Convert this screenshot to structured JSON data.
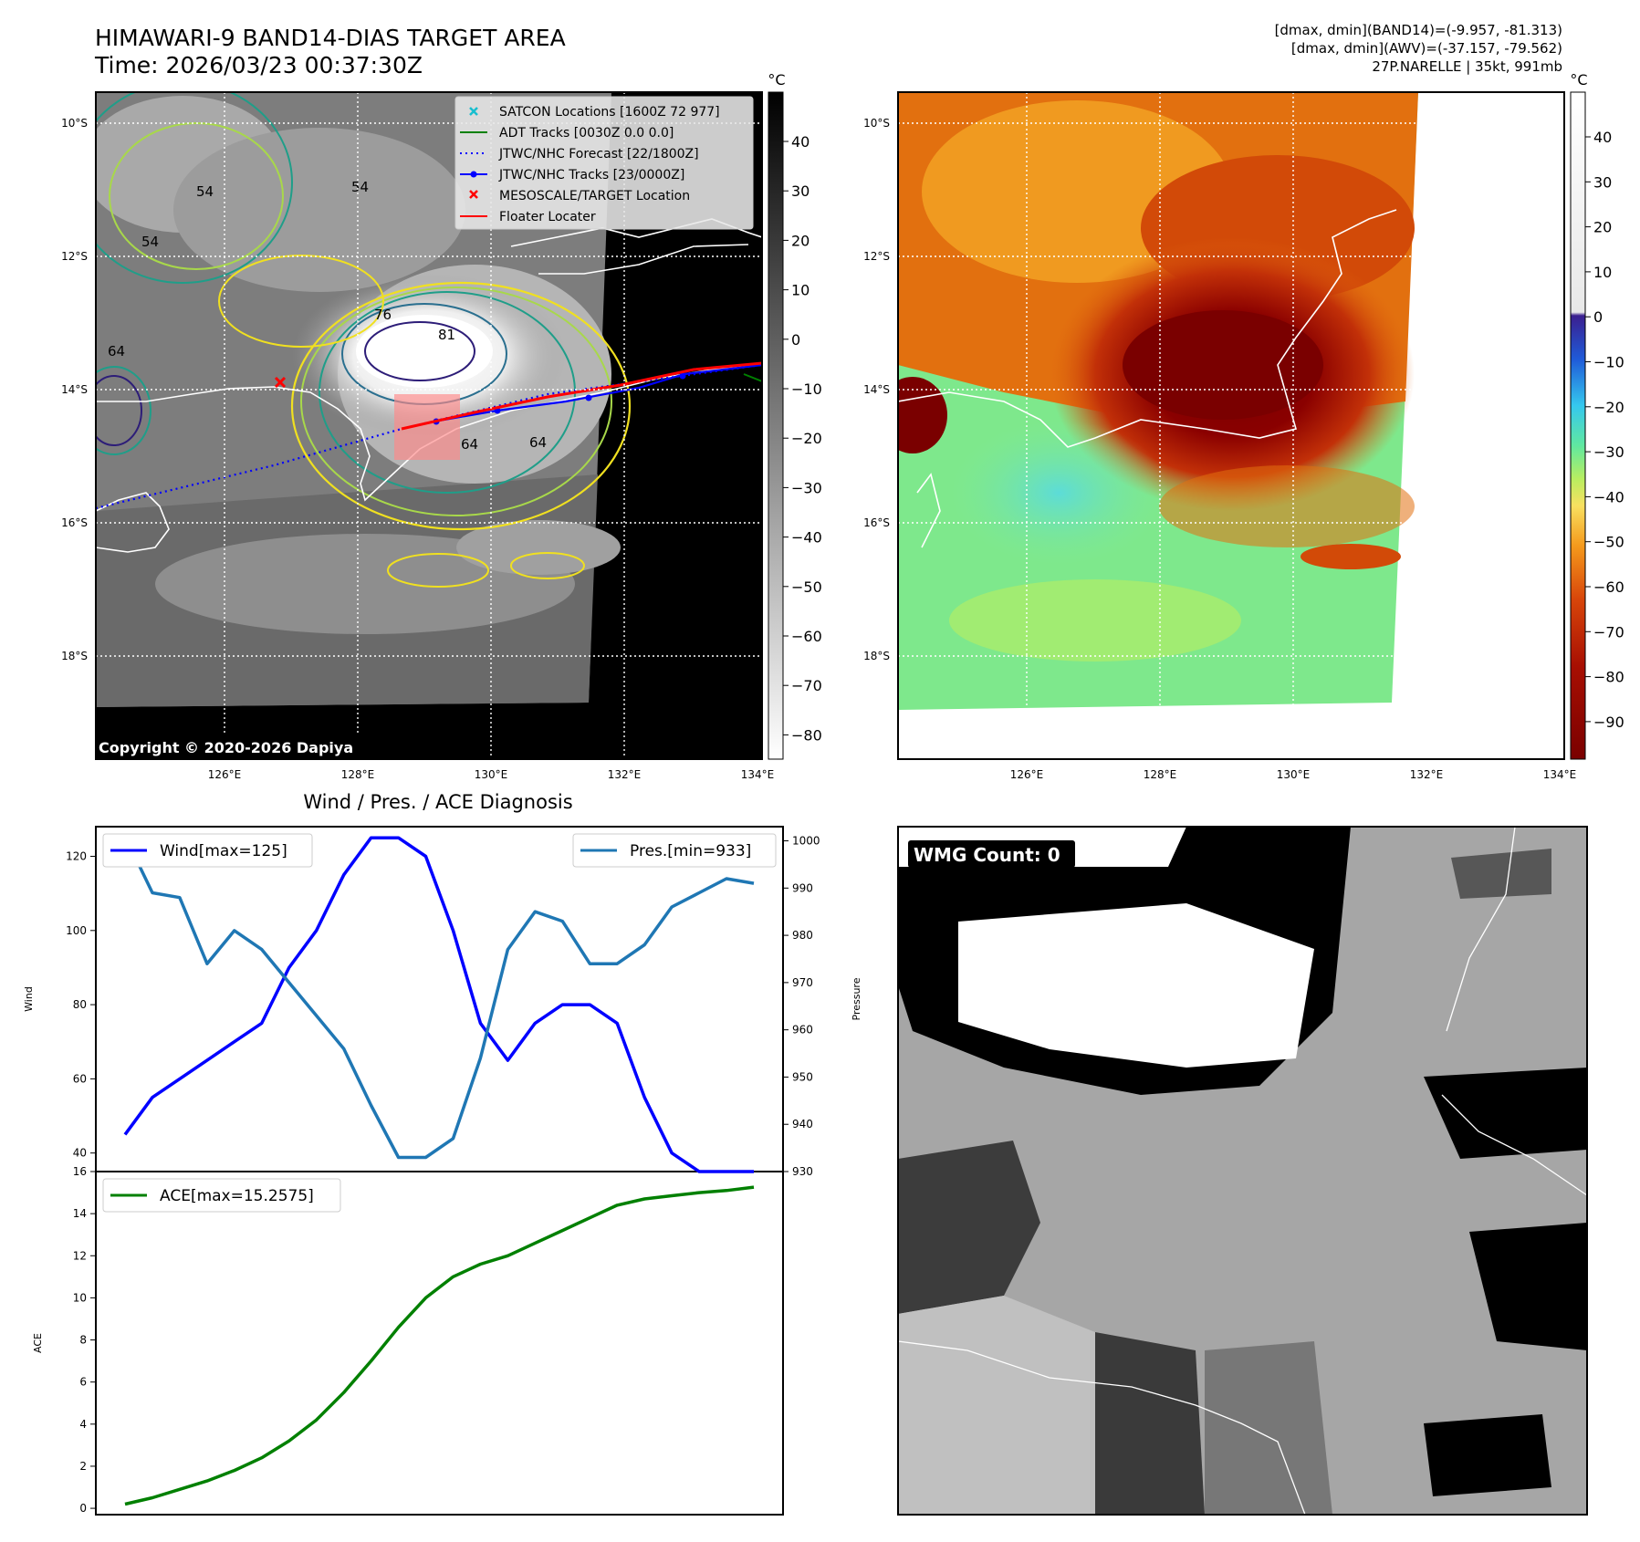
{
  "header": {
    "title_line1": "HIMAWARI-9 BAND14-DIAS TARGET AREA",
    "title_line2": "Time: 2026/03/23 00:37:30Z",
    "info_line1": "[dmax, dmin](BAND14)=(-9.957, -81.313)",
    "info_line2": "[dmax, dmin](AWV)=(-37.157, -79.562)",
    "info_line3": "27P.NARELLE | 35kt, 991mb"
  },
  "map": {
    "lat_labels": [
      "10°S",
      "12°S",
      "14°S",
      "16°S",
      "18°S"
    ],
    "lon_labels": [
      "126°E",
      "128°E",
      "130°E",
      "132°E",
      "134°E"
    ],
    "copyright": "Copyright © 2020-2026 Dapiya",
    "contour_labels": [
      "76",
      "81",
      "54",
      "64",
      "64",
      "54",
      "54",
      "64"
    ],
    "legend": [
      {
        "label": "SATCON Locations [1600Z 72 977]",
        "color": "#17becf",
        "marker": "x"
      },
      {
        "label": "ADT Tracks [0030Z 0.0 0.0]",
        "color": "#008000",
        "marker": "line"
      },
      {
        "label": "JTWC/NHC Forecast [22/1800Z]",
        "color": "#0000ff",
        "marker": "dotted"
      },
      {
        "label": "JTWC/NHC Tracks [23/0000Z]",
        "color": "#0000ff",
        "marker": "dot-line"
      },
      {
        "label": "MESOSCALE/TARGET Location",
        "color": "#ff0000",
        "marker": "x"
      },
      {
        "label": "Floater Locater",
        "color": "#ff0000",
        "marker": "line"
      }
    ],
    "colorbar_unit": "°C",
    "colorbar_left_ticks": [
      "40",
      "30",
      "20",
      "10",
      "0",
      "−10",
      "−20",
      "−30",
      "−40",
      "−50",
      "−60",
      "−70",
      "−80"
    ],
    "colorbar_right_ticks": [
      "40",
      "30",
      "20",
      "10",
      "0",
      "−10",
      "−20",
      "−30",
      "−40",
      "−50",
      "−60",
      "−70",
      "−80",
      "−90"
    ]
  },
  "wmg": {
    "count_label": "WMG Count: 0"
  },
  "chart_data": [
    {
      "type": "line",
      "title": "Wind / Pres. / ACE Diagnosis",
      "ylabel": "Wind",
      "y2label": "Pressure",
      "ylim": [
        35,
        128
      ],
      "y2lim": [
        930,
        1003
      ],
      "y_ticks": [
        "40",
        "60",
        "80",
        "100",
        "120"
      ],
      "y2_ticks": [
        "930",
        "940",
        "950",
        "960",
        "970",
        "980",
        "990",
        "1000"
      ],
      "x": [
        0,
        1,
        2,
        3,
        4,
        5,
        6,
        7,
        8,
        9,
        10,
        11,
        12,
        13,
        14,
        15,
        16,
        17,
        18,
        19,
        20,
        21,
        22,
        23
      ],
      "series": [
        {
          "name": "Wind[max=125]",
          "axis": "left",
          "color": "#0000ff",
          "values": [
            45,
            55,
            60,
            65,
            70,
            75,
            90,
            100,
            115,
            125,
            125,
            120,
            100,
            75,
            65,
            75,
            80,
            80,
            75,
            55,
            40,
            35,
            35,
            35
          ]
        },
        {
          "name": "Pres.[min=933]",
          "axis": "right",
          "color": "#1f77b4",
          "values": [
            1001,
            989,
            988,
            974,
            981,
            977,
            970,
            963,
            956,
            944,
            933,
            933,
            937,
            954,
            977,
            985,
            983,
            974,
            974,
            978,
            986,
            989,
            992,
            991
          ]
        }
      ]
    },
    {
      "type": "line",
      "ylabel": "ACE",
      "ylim": [
        -0.3,
        16
      ],
      "y_ticks": [
        "0",
        "2",
        "4",
        "6",
        "8",
        "10",
        "12",
        "14",
        "16"
      ],
      "x": [
        0,
        1,
        2,
        3,
        4,
        5,
        6,
        7,
        8,
        9,
        10,
        11,
        12,
        13,
        14,
        15,
        16,
        17,
        18,
        19,
        20,
        21,
        22,
        23
      ],
      "series": [
        {
          "name": "ACE[max=15.2575]",
          "color": "#008000",
          "values": [
            0.2,
            0.5,
            0.9,
            1.3,
            1.8,
            2.4,
            3.2,
            4.2,
            5.5,
            7.0,
            8.6,
            10.0,
            11.0,
            11.6,
            12.0,
            12.6,
            13.2,
            13.8,
            14.4,
            14.7,
            14.85,
            15.0,
            15.1,
            15.2575
          ]
        }
      ]
    }
  ]
}
